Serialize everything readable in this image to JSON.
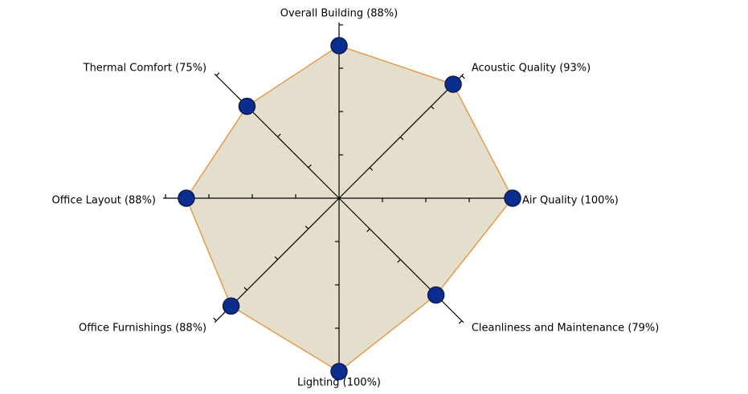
{
  "chart_data": {
    "type": "radar",
    "categories": [
      "Overall Building (88%)",
      "Acoustic Quality (93%)",
      "Air Quality (100%)",
      "Cleanliness and Maintenance (79%)",
      "Lighting (100%)",
      "Office Furnishings (88%)",
      "Office Layout (88%)",
      "Thermal Comfort (75%)"
    ],
    "values": [
      88,
      93,
      100,
      79,
      100,
      88,
      88,
      75
    ],
    "ylim": [
      0,
      100
    ],
    "yticks": [
      0,
      25,
      50,
      75,
      100
    ],
    "color": "#e59a4c",
    "fill": "#e4dfcd",
    "marker_color": "#0a2d8f"
  }
}
